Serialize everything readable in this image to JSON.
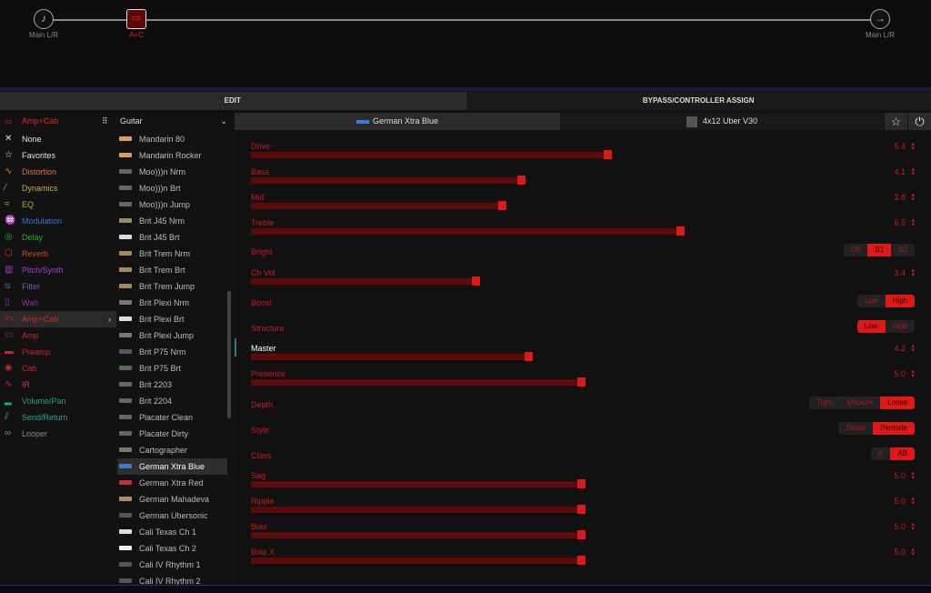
{
  "signal_flow": {
    "input_label": "Main L/R",
    "block_label": "A+C",
    "output_label": "Main L/R"
  },
  "tabs": {
    "edit": "EDIT",
    "bypass": "BYPASS/CONTROLLER ASSIGN"
  },
  "browser": {
    "category_header": "Amp+Cab",
    "filter": "Guitar",
    "categories": [
      {
        "label": "None",
        "color": "#e0e0e0",
        "icon": "x-icon"
      },
      {
        "label": "Favorites",
        "color": "#e0e0e0",
        "icon": "star-icon"
      },
      {
        "label": "Distortion",
        "color": "#d8792a",
        "icon": "distortion-icon"
      },
      {
        "label": "Dynamics",
        "color": "#c8b42a",
        "icon": "dynamics-icon"
      },
      {
        "label": "EQ",
        "color": "#c8a030",
        "icon": "eq-icon"
      },
      {
        "label": "Modulation",
        "color": "#2a78d0",
        "icon": "modulation-icon"
      },
      {
        "label": "Delay",
        "color": "#2aaa2a",
        "icon": "delay-icon"
      },
      {
        "label": "Reverb",
        "color": "#d0452a",
        "icon": "reverb-icon"
      },
      {
        "label": "Pitch/Synth",
        "color": "#a040d0",
        "icon": "pitch-icon"
      },
      {
        "label": "Filter",
        "color": "#8a50b0",
        "icon": "filter-icon"
      },
      {
        "label": "Wah",
        "color": "#9030b0",
        "icon": "wah-icon"
      },
      {
        "label": "Amp+Cab",
        "color": "#d02a2a",
        "icon": "amp-cab-icon"
      },
      {
        "label": "Amp",
        "color": "#c02a2a",
        "icon": "amp-icon"
      },
      {
        "label": "Preamp",
        "color": "#c02a2a",
        "icon": "preamp-icon"
      },
      {
        "label": "Cab",
        "color": "#c02a2a",
        "icon": "cab-icon"
      },
      {
        "label": "IR",
        "color": "#d02a70",
        "icon": "ir-icon"
      },
      {
        "label": "Volume/Pan",
        "color": "#2aa080",
        "icon": "volume-icon"
      },
      {
        "label": "Send/Return",
        "color": "#30a0a0",
        "icon": "send-return-icon"
      },
      {
        "label": "Looper",
        "color": "#888888",
        "icon": "looper-icon"
      }
    ],
    "selected_category": "Amp+Cab",
    "models": [
      "Mandarin 80",
      "Mandarin Rocker",
      "Moo)))n Nrm",
      "Moo)))n Brt",
      "Moo)))n Jump",
      "Brit J45 Nrm",
      "Brit J45 Brt",
      "Brit Trem Nrm",
      "Brit Trem Brt",
      "Brit Trem Jump",
      "Brit Plexi Nrm",
      "Brit Plexi Brt",
      "Brit Plexi Jump",
      "Brit P75 Nrm",
      "Brit P75 Brt",
      "Brit 2203",
      "Brit 2204",
      "Placater Clean",
      "Placater Dirty",
      "Cartographer",
      "German Xtra Blue",
      "German Xtra Red",
      "German Mahadeva",
      "German Ubersonic",
      "Cali Texas Ch 1",
      "Cali Texas Ch 2",
      "Cali IV Rhythm 1",
      "Cali IV Rhythm 2"
    ],
    "selected_model": "German Xtra Blue"
  },
  "editor": {
    "amp_name": "German Xtra Blue",
    "cab_name": "4x12 Uber V30",
    "params": [
      {
        "label": "Drive",
        "type": "slider",
        "value": "5.4"
      },
      {
        "label": "Bass",
        "type": "slider",
        "value": "4.1"
      },
      {
        "label": "Mid",
        "type": "slider",
        "value": "3.8"
      },
      {
        "label": "Treble",
        "type": "slider",
        "value": "6.5"
      },
      {
        "label": "Bright",
        "type": "switch",
        "options": [
          "Off",
          "B1",
          "B2"
        ],
        "selected": "B1"
      },
      {
        "label": "Ch Vol",
        "type": "slider",
        "value": "3.4"
      },
      {
        "label": "Boost",
        "type": "switch",
        "options": [
          "Low",
          "High"
        ],
        "selected": "High"
      },
      {
        "label": "Structure",
        "type": "switch",
        "options": [
          "Low",
          "High"
        ],
        "selected": "Low"
      },
      {
        "label": "Master",
        "type": "slider",
        "value": "4.2"
      },
      {
        "label": "Presence",
        "type": "slider",
        "value": "5.0"
      },
      {
        "label": "Depth",
        "type": "switch",
        "options": [
          "Tight",
          "Medium",
          "Loose"
        ],
        "selected": "Loose"
      },
      {
        "label": "Style",
        "type": "switch",
        "options": [
          "Triode",
          "Pentode"
        ],
        "selected": "Pentode"
      },
      {
        "label": "Class",
        "type": "switch",
        "options": [
          "A",
          "AB"
        ],
        "selected": "AB"
      },
      {
        "label": "Sag",
        "type": "slider",
        "value": "5.0"
      },
      {
        "label": "Ripple",
        "type": "slider",
        "value": "5.0"
      },
      {
        "label": "Bias",
        "type": "slider",
        "value": "5.0"
      },
      {
        "label": "Bias X",
        "type": "slider",
        "value": "5.0"
      }
    ],
    "active_param": "Master",
    "slider_max": 10
  },
  "colors": {
    "accent": "#e01818",
    "track": "#5c0a0a"
  }
}
